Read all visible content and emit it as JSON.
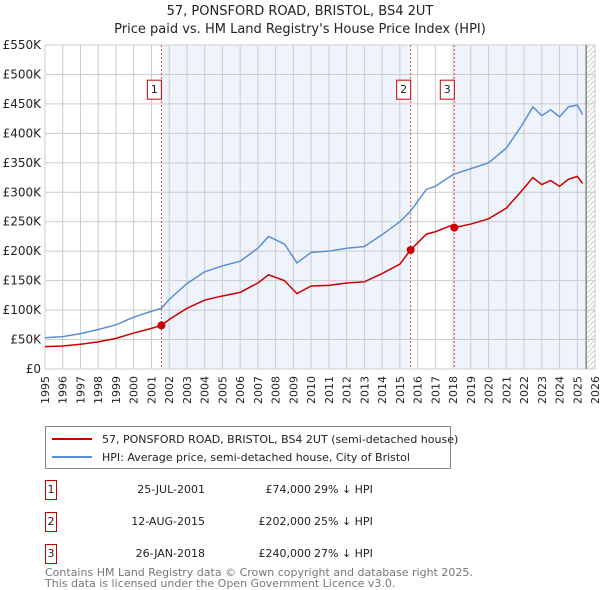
{
  "title": "57, PONSFORD ROAD, BRISTOL, BS4 2UT",
  "subtitle": "Price paid vs. HM Land Registry's House Price Index (HPI)",
  "legend": {
    "property": "57, PONSFORD ROAD, BRISTOL, BS4 2UT (semi-detached house)",
    "hpi": "HPI: Average price, semi-detached house, City of Bristol"
  },
  "sales": [
    {
      "n": "1",
      "date": "25-JUL-2001",
      "price": "£74,000",
      "hpi": "29% ↓ HPI",
      "x": 2001.56,
      "v": 74
    },
    {
      "n": "2",
      "date": "12-AUG-2015",
      "price": "£202,000",
      "hpi": "25% ↓ HPI",
      "x": 2015.61,
      "v": 202
    },
    {
      "n": "3",
      "date": "26-JAN-2018",
      "price": "£240,000",
      "hpi": "27% ↓ HPI",
      "x": 2018.07,
      "v": 240
    }
  ],
  "footer": [
    "Contains HM Land Registry data © Crown copyright and database right 2025.",
    "This data is licensed under the Open Government Licence v3.0."
  ],
  "chart_data": {
    "type": "line",
    "xlim": [
      1995,
      2026
    ],
    "ylim": [
      0,
      550
    ],
    "yticks": [
      "£0",
      "£50K",
      "£100K",
      "£150K",
      "£200K",
      "£250K",
      "£300K",
      "£350K",
      "£400K",
      "£450K",
      "£500K",
      "£550K"
    ],
    "xticks": [
      "1995",
      "1996",
      "1997",
      "1998",
      "1999",
      "2000",
      "2001",
      "2002",
      "2003",
      "2004",
      "2005",
      "2006",
      "2007",
      "2008",
      "2009",
      "2010",
      "2011",
      "2012",
      "2013",
      "2014",
      "2015",
      "2016",
      "2017",
      "2018",
      "2019",
      "2020",
      "2021",
      "2022",
      "2023",
      "2024",
      "2025",
      "2026"
    ],
    "colors": {
      "property": "#cc0000",
      "hpi": "#5b8fd4"
    },
    "series": [
      {
        "name": "HPI",
        "x": [
          1995,
          1996,
          1997,
          1998,
          1999,
          2000,
          2001,
          2001.56,
          2002,
          2003,
          2004,
          2005,
          2006,
          2007,
          2007.6,
          2008.5,
          2009.2,
          2010,
          2011,
          2012,
          2013,
          2014,
          2015,
          2015.6,
          2016.5,
          2017,
          2018,
          2019,
          2020,
          2021,
          2021.8,
          2022.5,
          2023,
          2023.5,
          2024,
          2024.5,
          2025,
          2025.3
        ],
        "y": [
          53,
          55,
          60,
          67,
          75,
          88,
          98,
          103,
          118,
          145,
          165,
          175,
          183,
          205,
          225,
          212,
          180,
          198,
          200,
          205,
          208,
          228,
          250,
          268,
          305,
          310,
          330,
          340,
          350,
          375,
          410,
          445,
          430,
          440,
          428,
          445,
          448,
          432
        ]
      },
      {
        "name": "Property",
        "x": [
          1995,
          1996,
          1997,
          1998,
          1999,
          2000,
          2001,
          2001.56,
          2002,
          2003,
          2004,
          2005,
          2006,
          2007,
          2007.6,
          2008.5,
          2009.2,
          2010,
          2011,
          2012,
          2013,
          2014,
          2015,
          2015.6,
          2016.5,
          2017,
          2018,
          2018.07,
          2019,
          2020,
          2021,
          2021.8,
          2022.5,
          2023,
          2023.5,
          2024,
          2024.5,
          2025,
          2025.3
        ],
        "y": [
          38,
          39,
          42,
          46,
          52,
          61,
          69,
          74,
          84,
          103,
          117,
          124,
          130,
          146,
          160,
          150,
          128,
          141,
          142,
          146,
          148,
          162,
          178,
          202,
          229,
          233,
          245,
          240,
          246,
          255,
          273,
          300,
          325,
          313,
          320,
          310,
          322,
          327,
          315
        ]
      }
    ]
  }
}
